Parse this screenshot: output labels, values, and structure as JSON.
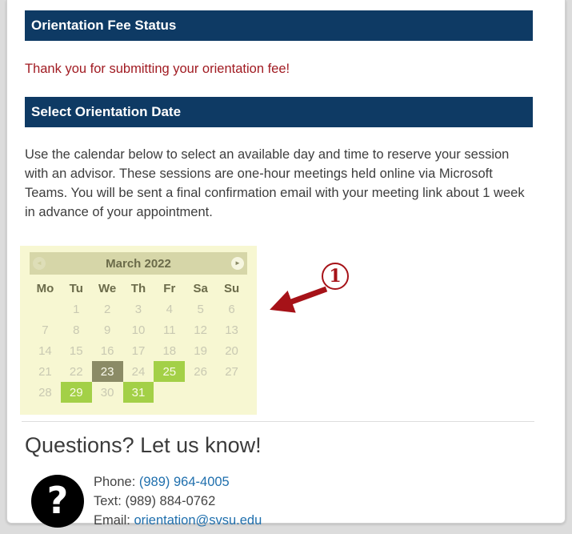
{
  "colors": {
    "navy": "#0e3a64",
    "red_text": "#a11b22",
    "annotation_red": "#a61218",
    "link_blue": "#1f6fad",
    "body_text": "#3d3d3d",
    "page_bg": "#dcdcdc",
    "cal_bg": "#f7f7d2",
    "cal_header_bg": "#d6d6a8",
    "olive": "#6b6b4a",
    "muted_day": "#c9c9b2",
    "selected_bg": "#8b8b66",
    "available_bg": "#a3d047"
  },
  "sections": {
    "fee_status": {
      "title": "Orientation Fee Status",
      "message": "Thank you for submitting your orientation fee!"
    },
    "select_date": {
      "title": "Select Orientation Date",
      "instructions": "Use the calendar below to select an available day and time to reserve your session with an advisor. These sessions are one-hour meetings held online via Microsoft Teams. You will be sent a final confirmation email with your meeting link about 1 week in advance of your appointment."
    }
  },
  "calendar": {
    "month_label": "March 2022",
    "prev_icon": "◄",
    "next_icon": "►",
    "weekdays": [
      "Mo",
      "Tu",
      "We",
      "Th",
      "Fr",
      "Sa",
      "Su"
    ],
    "weeks": [
      [
        "",
        "1",
        "2",
        "3",
        "4",
        "5",
        "6"
      ],
      [
        "7",
        "8",
        "9",
        "10",
        "11",
        "12",
        "13"
      ],
      [
        "14",
        "15",
        "16",
        "17",
        "18",
        "19",
        "20"
      ],
      [
        "21",
        "22",
        "23",
        "24",
        "25",
        "26",
        "27"
      ],
      [
        "28",
        "29",
        "30",
        "31",
        "",
        "",
        ""
      ]
    ],
    "selected_day": "23",
    "available_days": [
      "25",
      "29",
      "31"
    ]
  },
  "annotation": {
    "number": "1"
  },
  "contact": {
    "heading": "Questions? Let us know!",
    "icon_glyph": "?",
    "phone_label": "Phone:",
    "phone_value": "(989) 964-4005",
    "text_label": "Text:",
    "text_value": "(989) 884-0762",
    "email_label": "Email:",
    "email_value": "orientation@svsu.edu"
  }
}
